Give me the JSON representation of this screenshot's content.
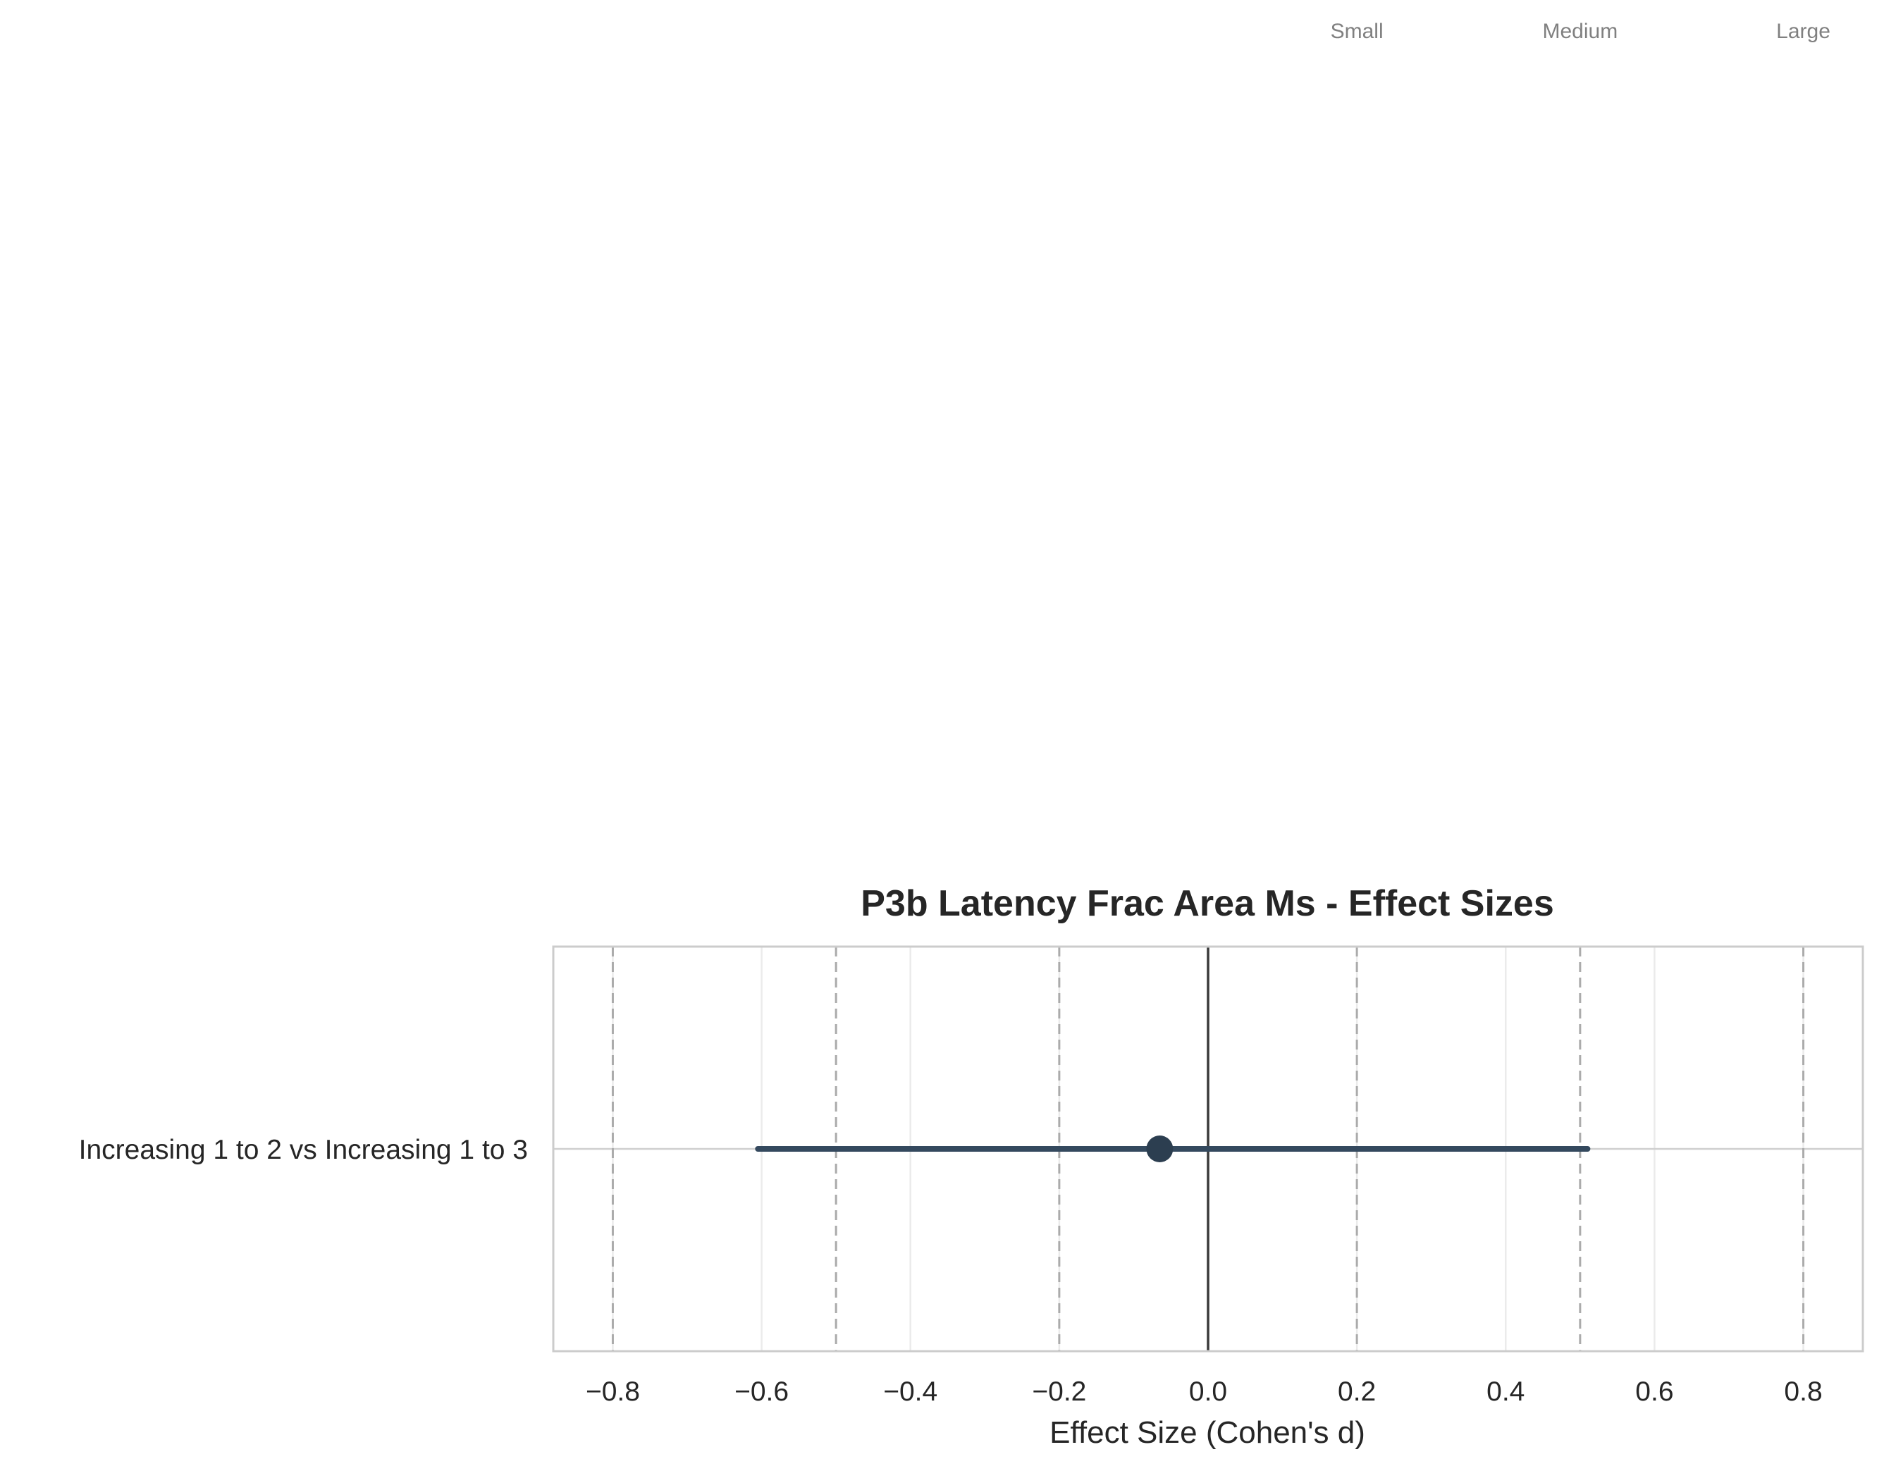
{
  "chart_data": {
    "type": "scatter",
    "title": "P3b Latency Frac Area Ms - Effect Sizes",
    "xlabel": "Effect Size (Cohen's d)",
    "ylabel": "",
    "xlim": [
      -0.88,
      0.88
    ],
    "xticks": [
      -0.8,
      -0.6,
      -0.4,
      -0.2,
      0.0,
      0.2,
      0.4,
      0.6,
      0.8
    ],
    "xtick_labels": [
      "−0.8",
      "−0.6",
      "−0.4",
      "−0.2",
      "0.0",
      "0.2",
      "0.4",
      "0.6",
      "0.8"
    ],
    "grid": true,
    "zero_line": 0.0,
    "reference_lines": [
      -0.8,
      -0.5,
      -0.2,
      0.2,
      0.5,
      0.8
    ],
    "reference_labels": [
      {
        "label": "Small",
        "x": 0.2
      },
      {
        "label": "Medium",
        "x": 0.5
      },
      {
        "label": "Large",
        "x": 0.8
      }
    ],
    "categories": [
      "Increasing 1 to 2 vs Increasing 1 to 3"
    ],
    "series": [
      {
        "effect": [
          -0.065
        ],
        "ci_low": [
          -0.605
        ],
        "ci_high": [
          0.51
        ],
        "color": "#2c3e50"
      }
    ]
  }
}
